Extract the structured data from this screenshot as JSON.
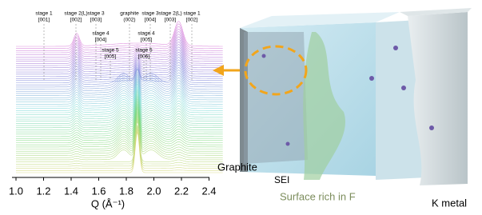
{
  "plot": {
    "xticks": [
      "1.0",
      "1.2",
      "1.4",
      "1.6",
      "1.8",
      "2.0",
      "2.2",
      "2.4"
    ],
    "xlabel": "Q (Å⁻¹)",
    "peak_labels": [
      [
        "stage 1",
        "[001]"
      ],
      [
        "stage 2(L)",
        "[002]"
      ],
      [
        "stage 3",
        "[003]"
      ],
      [
        "stage 4",
        "[004]"
      ],
      [
        "stage 5",
        "[005]"
      ],
      [
        "graphite",
        "(002)"
      ],
      [
        "stage 3",
        "[004]"
      ],
      [
        "stage 4",
        "[005]"
      ],
      [
        "stage 5",
        "[006]"
      ],
      [
        "stage 2(L)",
        "[003]"
      ],
      [
        "stage 1",
        "[002]"
      ]
    ]
  },
  "illustration": {
    "graphite": "Graphite",
    "sei": "SEI",
    "surface": "Surface rich in F",
    "k_metal": "K metal"
  }
}
